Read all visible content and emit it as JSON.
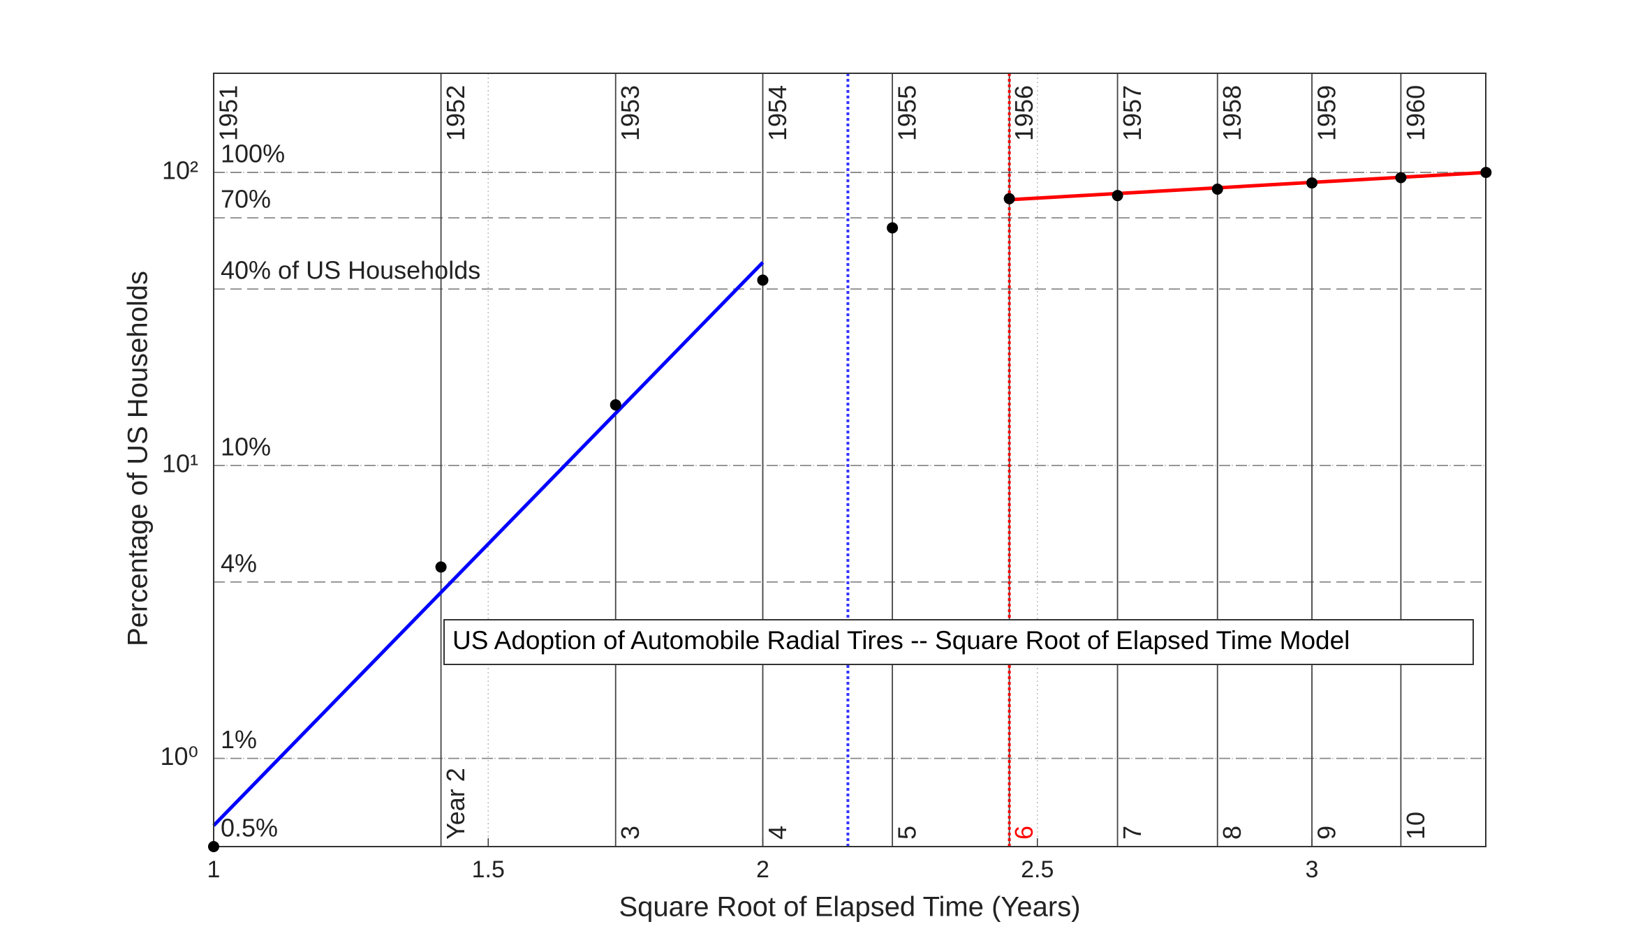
{
  "chart_data": {
    "type": "scatter",
    "title": "US Adoption of Automobile Radial Tires -- Square Root of Elapsed Time Model",
    "xlabel": "Square Root of Elapsed Time (Years)",
    "ylabel": "Percentage of US Households",
    "log_y": true,
    "grid": true,
    "xlim": [
      1,
      3.3166
    ],
    "ylim": [
      0.5,
      218
    ],
    "xticks": [
      1,
      1.5,
      2,
      2.5,
      3
    ],
    "yticks": [
      {
        "value": 1,
        "label": "10⁰"
      },
      {
        "value": 10,
        "label": "10¹"
      },
      {
        "value": 100,
        "label": "10²"
      }
    ],
    "points": {
      "color": "#000000",
      "x": [
        1,
        1.414,
        1.732,
        2,
        2.236,
        2.449,
        2.646,
        2.828,
        3,
        3.162,
        3.317
      ],
      "values": [
        0.5,
        4.5,
        16.1,
        42.9,
        64.7,
        81.4,
        83.4,
        87.7,
        92.1,
        96,
        100
      ]
    },
    "fit_lines": [
      {
        "color": "#0000ff",
        "x": [
          1,
          2
        ],
        "values": [
          0.59,
          49.3
        ]
      },
      {
        "color": "#ff0000",
        "x": [
          2.449,
          3.317
        ],
        "values": [
          80.7,
          100
        ]
      }
    ],
    "marker_lines": [
      {
        "x": 2.155,
        "color": "#3333ff"
      },
      {
        "x": 2.449,
        "color": "#ff0000"
      }
    ],
    "year_lines": [
      {
        "x": 1,
        "year": "1951"
      },
      {
        "x": 1.414,
        "year": "1952",
        "label": "Year 2"
      },
      {
        "x": 1.732,
        "year": "1953",
        "label": "3"
      },
      {
        "x": 2,
        "year": "1954",
        "label": "4"
      },
      {
        "x": 2.236,
        "year": "1955",
        "label": "5"
      },
      {
        "x": 2.449,
        "year": "1956",
        "label": "6",
        "label_color": "#ff0000"
      },
      {
        "x": 2.646,
        "year": "1957",
        "label": "7"
      },
      {
        "x": 2.828,
        "year": "1958",
        "label": "8"
      },
      {
        "x": 3,
        "year": "1959",
        "label": "9"
      },
      {
        "x": 3.162,
        "year": "1960",
        "label": "10"
      }
    ],
    "level_lines": [
      {
        "y": 100,
        "label": "100%"
      },
      {
        "y": 70,
        "label": "70%"
      },
      {
        "y": 40,
        "label": "40% of US Households"
      },
      {
        "y": 10,
        "label": "10%"
      },
      {
        "y": 4,
        "label": "4%"
      },
      {
        "y": 1,
        "label": "1%"
      },
      {
        "y": 0.5,
        "label": "0.5%"
      }
    ]
  }
}
